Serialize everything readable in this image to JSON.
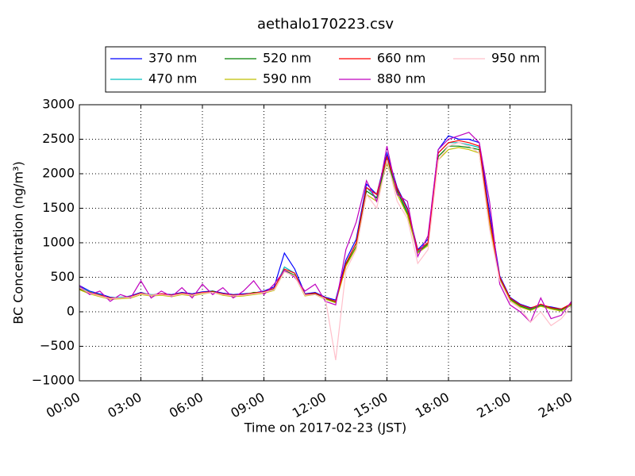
{
  "chart_data": {
    "type": "line",
    "title": "aethalo170223.csv",
    "x_label": "Time on 2017-02-23 (JST)",
    "y_label": "BC Concentration (ng/m³)",
    "x": [
      0,
      0.5,
      1,
      1.5,
      2,
      2.5,
      3,
      3.5,
      4,
      4.5,
      5,
      5.5,
      6,
      6.5,
      7,
      7.5,
      8,
      8.5,
      9,
      9.5,
      10,
      10.5,
      11,
      11.5,
      12,
      12.5,
      13,
      13.5,
      14,
      14.5,
      15,
      15.5,
      16,
      16.5,
      17,
      17.5,
      18,
      18.5,
      19,
      19.5,
      20,
      20.5,
      21,
      21.5,
      22,
      22.5,
      23,
      23.5,
      24
    ],
    "series": [
      {
        "name": "370 nm",
        "color": "#0000ff",
        "values": [
          380,
          300,
          260,
          210,
          200,
          230,
          280,
          240,
          260,
          250,
          280,
          260,
          290,
          300,
          270,
          250,
          260,
          270,
          300,
          360,
          850,
          620,
          260,
          280,
          210,
          170,
          750,
          1050,
          1850,
          1700,
          2300,
          1800,
          1500,
          900,
          1050,
          2350,
          2550,
          2500,
          2500,
          2450,
          1450,
          520,
          210,
          110,
          60,
          90,
          70,
          40,
          110
        ]
      },
      {
        "name": "470 nm",
        "color": "#00bfbf",
        "values": [
          360,
          290,
          250,
          200,
          210,
          220,
          270,
          250,
          250,
          240,
          270,
          250,
          280,
          290,
          260,
          240,
          250,
          260,
          290,
          330,
          650,
          560,
          250,
          270,
          200,
          150,
          700,
          1000,
          1800,
          1650,
          2250,
          1750,
          1450,
          880,
          1000,
          2300,
          2450,
          2450,
          2420,
          2380,
          1350,
          480,
          190,
          90,
          40,
          100,
          60,
          30,
          90
        ]
      },
      {
        "name": "520 nm",
        "color": "#008000",
        "values": [
          330,
          270,
          230,
          190,
          200,
          210,
          260,
          240,
          250,
          230,
          260,
          240,
          270,
          300,
          250,
          230,
          240,
          280,
          280,
          320,
          600,
          530,
          240,
          260,
          190,
          140,
          680,
          950,
          1750,
          1650,
          2200,
          1750,
          1420,
          860,
          980,
          2250,
          2400,
          2400,
          2380,
          2350,
          1300,
          470,
          180,
          80,
          30,
          90,
          50,
          20,
          120
        ]
      },
      {
        "name": "590 nm",
        "color": "#bfbf00",
        "values": [
          320,
          260,
          220,
          180,
          190,
          200,
          250,
          230,
          240,
          220,
          250,
          230,
          260,
          280,
          240,
          220,
          230,
          250,
          270,
          310,
          580,
          520,
          230,
          250,
          180,
          130,
          660,
          930,
          1700,
          1600,
          2150,
          1700,
          1400,
          850,
          960,
          2200,
          2350,
          2380,
          2350,
          2300,
          1280,
          460,
          170,
          70,
          20,
          80,
          40,
          10,
          100
        ]
      },
      {
        "name": "660 nm",
        "color": "#ff0000",
        "values": [
          340,
          280,
          240,
          200,
          200,
          220,
          270,
          240,
          260,
          240,
          270,
          250,
          280,
          290,
          260,
          240,
          250,
          270,
          290,
          340,
          620,
          560,
          250,
          270,
          200,
          150,
          700,
          1000,
          1800,
          1700,
          2250,
          1780,
          1480,
          890,
          1000,
          2300,
          2450,
          2480,
          2450,
          2400,
          1350,
          500,
          200,
          100,
          50,
          110,
          60,
          40,
          120
        ]
      },
      {
        "name": "880 nm",
        "color": "#bf00bf",
        "values": [
          380,
          250,
          300,
          150,
          250,
          200,
          450,
          200,
          300,
          220,
          350,
          200,
          400,
          250,
          350,
          200,
          300,
          450,
          250,
          400,
          600,
          500,
          300,
          400,
          150,
          100,
          900,
          1300,
          1900,
          1600,
          2400,
          1700,
          1600,
          800,
          1100,
          2350,
          2500,
          2550,
          2600,
          2450,
          1600,
          400,
          100,
          0,
          -150,
          200,
          -100,
          -50,
          150
        ]
      },
      {
        "name": "950 nm",
        "color": "#ffc0cb",
        "values": [
          350,
          270,
          230,
          190,
          200,
          210,
          260,
          240,
          250,
          230,
          260,
          240,
          270,
          280,
          250,
          230,
          240,
          260,
          280,
          320,
          580,
          520,
          240,
          250,
          190,
          -700,
          600,
          900,
          1700,
          1500,
          2200,
          1600,
          1350,
          700,
          900,
          2200,
          2400,
          2450,
          2400,
          2300,
          1200,
          450,
          150,
          50,
          -150,
          0,
          -200,
          -100,
          80
        ]
      }
    ],
    "xlim": [
      0,
      24
    ],
    "xticks": [
      {
        "value": 0,
        "label": "00:00"
      },
      {
        "value": 3,
        "label": "03:00"
      },
      {
        "value": 6,
        "label": "06:00"
      },
      {
        "value": 9,
        "label": "09:00"
      },
      {
        "value": 12,
        "label": "12:00"
      },
      {
        "value": 15,
        "label": "15:00"
      },
      {
        "value": 18,
        "label": "18:00"
      },
      {
        "value": 21,
        "label": "21:00"
      },
      {
        "value": 24,
        "label": "24:00"
      }
    ],
    "ylim": [
      -1000,
      3000
    ],
    "yticks": [
      {
        "value": -1000,
        "label": "−1000"
      },
      {
        "value": -500,
        "label": "−500"
      },
      0,
      500,
      1000,
      1500,
      2000,
      2500,
      3000
    ],
    "grid": true,
    "legend": "upper center"
  }
}
